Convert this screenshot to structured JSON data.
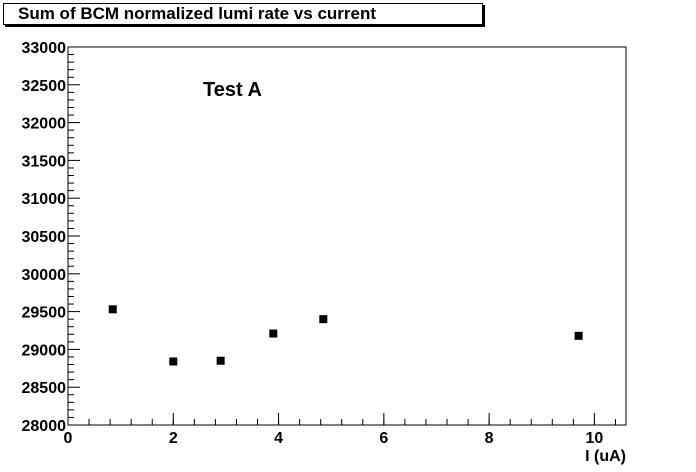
{
  "chart_data": {
    "type": "scatter",
    "title": "Sum of BCM normalized lumi rate vs current",
    "annotation": "Test A",
    "xlabel": "I (uA)",
    "ylabel": "",
    "xlim": [
      0,
      10.6
    ],
    "ylim": [
      28000,
      33000
    ],
    "x_ticks": [
      0,
      2,
      4,
      6,
      8,
      10
    ],
    "y_ticks": [
      28000,
      28500,
      29000,
      29500,
      30000,
      30500,
      31000,
      31500,
      32000,
      32500,
      33000
    ],
    "grid": false,
    "series": [
      {
        "x": [
          0.85,
          2.0,
          2.9,
          3.9,
          4.85,
          9.7
        ],
        "y": [
          29530,
          28840,
          28850,
          29210,
          29400,
          29180
        ]
      }
    ]
  }
}
